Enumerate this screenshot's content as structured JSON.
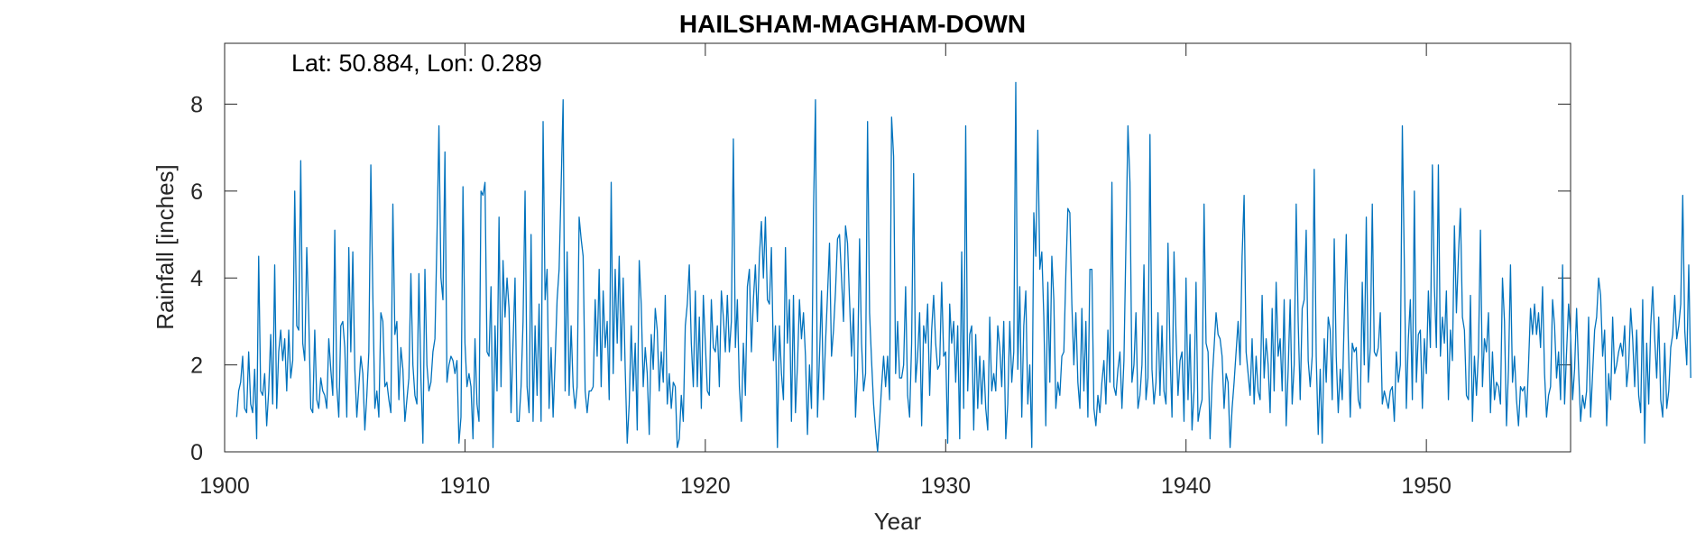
{
  "chart_data": {
    "type": "line",
    "title": "HAILSHAM-MAGHAM-DOWN",
    "annotation": "Lat: 50.884, Lon: 0.289",
    "xlabel": "Year",
    "ylabel": "Rainfall [inches]",
    "xlim": [
      1900,
      1956
    ],
    "ylim": [
      0,
      9.4
    ],
    "xticks": [
      1900,
      1910,
      1920,
      1930,
      1940,
      1950
    ],
    "yticks": [
      0,
      2,
      4,
      6,
      8
    ],
    "grid": false,
    "line_color": "#0072BD",
    "series": [
      {
        "x_start": 1900.5,
        "x_step": 0.0833333,
        "values": [
          0.8,
          1.4,
          1.6,
          2.2,
          1.0,
          0.9,
          2.3,
          1.1,
          0.9,
          1.9,
          0.3,
          4.5,
          1.4,
          1.3,
          1.8,
          0.6,
          1.4,
          2.7,
          1.1,
          4.3,
          1.0,
          2.3,
          2.8,
          2.1,
          2.6,
          1.4,
          2.8,
          1.7,
          2.1,
          6.0,
          2.9,
          2.8,
          6.7,
          2.5,
          2.1,
          4.7,
          3.1,
          1.0,
          0.9,
          2.8,
          1.2,
          1.0,
          1.7,
          1.4,
          1.3,
          1.0,
          2.6,
          1.9,
          1.3,
          5.1,
          1.5,
          0.8,
          2.9,
          3.0,
          2.4,
          0.8,
          4.7,
          2.3,
          4.6,
          1.9,
          0.8,
          1.5,
          2.2,
          1.8,
          0.5,
          1.3,
          2.3,
          6.6,
          3.6,
          1.0,
          1.4,
          0.8,
          3.2,
          3.0,
          1.5,
          1.6,
          1.2,
          0.9,
          5.7,
          2.7,
          3.0,
          1.2,
          2.4,
          1.9,
          0.7,
          1.2,
          1.7,
          4.1,
          2.0,
          1.3,
          1.1,
          4.1,
          1.7,
          0.2,
          4.2,
          2.0,
          1.4,
          1.6,
          2.3,
          2.6,
          4.9,
          7.5,
          4.0,
          3.5,
          6.9,
          1.6,
          2.0,
          2.2,
          2.1,
          1.8,
          2.1,
          0.2,
          0.8,
          6.1,
          2.5,
          1.5,
          1.8,
          1.5,
          0.3,
          2.6,
          1.1,
          0.7,
          6.0,
          5.9,
          6.2,
          2.3,
          2.2,
          3.8,
          0.1,
          2.9,
          1.4,
          5.4,
          1.5,
          4.4,
          3.1,
          4.0,
          3.3,
          0.9,
          2.5,
          4.0,
          0.7,
          0.7,
          1.5,
          3.0,
          6.0,
          1.5,
          0.9,
          5.0,
          0.7,
          2.9,
          1.3,
          3.4,
          0.7,
          7.6,
          3.5,
          4.2,
          1.0,
          2.4,
          0.8,
          2.1,
          3.5,
          4.2,
          6.1,
          8.1,
          1.4,
          4.6,
          1.3,
          2.9,
          1.5,
          1.0,
          1.5,
          5.4,
          4.9,
          4.5,
          1.4,
          0.9,
          1.4,
          1.4,
          1.5,
          3.5,
          2.2,
          4.2,
          1.5,
          3.7,
          2.4,
          3.0,
          1.2,
          6.2,
          1.8,
          4.2,
          2.5,
          4.5,
          2.1,
          4.0,
          1.9,
          0.2,
          1.1,
          2.9,
          1.4,
          2.5,
          0.5,
          4.4,
          3.4,
          1.5,
          2.4,
          1.8,
          0.4,
          2.7,
          1.9,
          3.3,
          2.8,
          1.4,
          2.3,
          1.6,
          3.6,
          1.1,
          1.8,
          1.0,
          1.6,
          1.5,
          0.1,
          0.3,
          1.3,
          0.7,
          2.9,
          3.4,
          4.3,
          2.5,
          1.5,
          3.7,
          1.5,
          3.1,
          1.0,
          3.6,
          2.5,
          1.4,
          1.3,
          3.5,
          2.4,
          2.3,
          2.9,
          1.5,
          3.7,
          3.1,
          2.3,
          3.6,
          2.3,
          3.0,
          7.2,
          2.4,
          3.5,
          1.5,
          0.7,
          2.5,
          1.3,
          3.8,
          4.2,
          2.3,
          3.5,
          4.3,
          3.0,
          4.5,
          5.3,
          4.0,
          5.4,
          3.5,
          3.4,
          4.7,
          2.1,
          2.9,
          0.1,
          2.9,
          1.8,
          1.2,
          4.7,
          2.5,
          3.5,
          0.7,
          3.6,
          0.9,
          2.0,
          3.5,
          2.6,
          3.2,
          2.2,
          0.4,
          2.0,
          1.0,
          5.5,
          8.1,
          0.8,
          2.2,
          3.7,
          1.2,
          2.5,
          3.6,
          4.8,
          2.2,
          2.8,
          3.7,
          4.9,
          5.0,
          4.0,
          3.0,
          5.2,
          4.8,
          3.5,
          2.2,
          3.3,
          0.8,
          1.9,
          4.9,
          2.5,
          1.4,
          1.8,
          7.6,
          3.2,
          2.1,
          1.1,
          0.5,
          0.0,
          0.7,
          1.5,
          2.2,
          1.5,
          2.2,
          1.2,
          7.7,
          6.8,
          1.8,
          3.0,
          1.7,
          1.7,
          2.0,
          3.8,
          1.3,
          0.8,
          2.5,
          6.4,
          1.6,
          2.2,
          3.2,
          0.6,
          2.9,
          2.5,
          3.4,
          1.3,
          2.8,
          3.6,
          2.5,
          1.9,
          2.0,
          3.9,
          2.2,
          2.3,
          0.2,
          3.4,
          2.5,
          3.0,
          1.6,
          2.9,
          0.3,
          4.6,
          1.0,
          7.5,
          1.4,
          2.7,
          2.9,
          0.5,
          2.7,
          1.0,
          2.2,
          1.1,
          2.1,
          1.0,
          0.5,
          3.1,
          1.4,
          1.8,
          1.4,
          2.9,
          2.4,
          1.5,
          3.0,
          0.3,
          1.1,
          3.0,
          1.6,
          2.3,
          8.5,
          1.9,
          3.8,
          0.8,
          2.9,
          3.7,
          1.1,
          2.0,
          0.1,
          5.5,
          4.5,
          7.4,
          4.2,
          4.6,
          3.1,
          0.6,
          3.9,
          1.6,
          4.5,
          3.5,
          1.0,
          1.6,
          1.3,
          2.2,
          2.3,
          4.1,
          5.6,
          5.5,
          3.4,
          2.0,
          3.2,
          1.6,
          1.0,
          3.3,
          1.4,
          3.0,
          0.8,
          4.2,
          4.2,
          1.0,
          0.6,
          1.3,
          0.9,
          1.6,
          2.1,
          1.1,
          2.8,
          1.6,
          6.2,
          1.5,
          1.3,
          1.9,
          2.3,
          1.0,
          2.1,
          4.8,
          7.5,
          6.2,
          1.6,
          2.0,
          3.2,
          1.0,
          1.3,
          2.0,
          4.3,
          1.2,
          1.7,
          7.3,
          1.9,
          1.1,
          1.6,
          3.2,
          1.3,
          2.9,
          1.4,
          1.1,
          4.8,
          2.3,
          0.8,
          4.6,
          2.7,
          1.3,
          2.1,
          2.3,
          0.7,
          4.0,
          1.2,
          2.7,
          0.5,
          1.4,
          3.9,
          0.7,
          1.0,
          1.2,
          5.7,
          2.5,
          2.3,
          0.3,
          1.6,
          2.4,
          3.2,
          2.7,
          2.6,
          2.2,
          1.0,
          1.8,
          1.6,
          0.1,
          1.0,
          1.6,
          2.3,
          3.0,
          2.0,
          4.5,
          5.9,
          2.3,
          1.8,
          1.3,
          2.6,
          1.1,
          2.2,
          1.4,
          1.2,
          3.6,
          1.7,
          2.6,
          2.0,
          0.9,
          3.3,
          1.4,
          3.9,
          2.2,
          2.6,
          1.4,
          3.5,
          0.6,
          1.9,
          3.5,
          1.1,
          2.0,
          5.7,
          3.0,
          1.2,
          3.3,
          3.5,
          5.1,
          2.1,
          1.5,
          2.2,
          6.5,
          2.2,
          0.4,
          1.9,
          0.2,
          2.6,
          1.6,
          3.1,
          2.8,
          1.2,
          4.9,
          2.2,
          0.9,
          1.9,
          1.2,
          3.1,
          5.0,
          2.6,
          0.8,
          2.5,
          2.3,
          2.4,
          1.2,
          1.0,
          3.9,
          2.0,
          5.4,
          1.6,
          2.4,
          5.7,
          2.3,
          2.2,
          2.4,
          3.2,
          1.1,
          1.4,
          1.2,
          1.0,
          1.4,
          1.5,
          0.7,
          2.3,
          1.6,
          2.0,
          7.5,
          4.3,
          1.0,
          2.6,
          3.5,
          1.2,
          6.0,
          1.6,
          2.7,
          2.8,
          1.0,
          2.6,
          1.8,
          3.7,
          2.4,
          6.6,
          3.8,
          2.4,
          6.6,
          2.2,
          3.1,
          2.5,
          3.7,
          1.2,
          2.8,
          2.1,
          5.2,
          3.2,
          4.5,
          5.6,
          3.1,
          2.8,
          1.3,
          1.2,
          3.6,
          0.7,
          2.2,
          1.3,
          2.3,
          5.1,
          1.5,
          2.6,
          2.3,
          3.2,
          0.9,
          2.3,
          1.2,
          1.6,
          1.5,
          1.1,
          4.0,
          3.0,
          0.6,
          1.9,
          4.3,
          1.6,
          2.2,
          1.2,
          0.6,
          1.5,
          1.4,
          1.5,
          0.8,
          2.0,
          3.3,
          2.7,
          3.4,
          2.7,
          3.2,
          2.4,
          3.8,
          1.8,
          0.8,
          1.3,
          1.5,
          3.5,
          2.9,
          1.7,
          2.3,
          1.2,
          4.3,
          1.1,
          2.3,
          3.4,
          2.7,
          1.2,
          1.9,
          3.3,
          1.9,
          0.7,
          1.3,
          1.0,
          1.4,
          3.1,
          0.8,
          1.8,
          2.8,
          3.1,
          4.0,
          3.6,
          2.2,
          2.8,
          0.6,
          1.8,
          1.2,
          3.1,
          1.8,
          2.0,
          2.3,
          2.5,
          2.2,
          2.9,
          1.5,
          2.0,
          3.3,
          2.6,
          1.5,
          2.8,
          1.3,
          0.9,
          3.5,
          0.2,
          2.5,
          1.1,
          2.9,
          3.8,
          2.6,
          1.7,
          3.1,
          1.2,
          0.8,
          2.5,
          1.0,
          1.4,
          2.4,
          2.7,
          3.6,
          2.6,
          2.9,
          3.4,
          5.9,
          2.8,
          2.0,
          4.3,
          1.7
        ]
      }
    ]
  }
}
